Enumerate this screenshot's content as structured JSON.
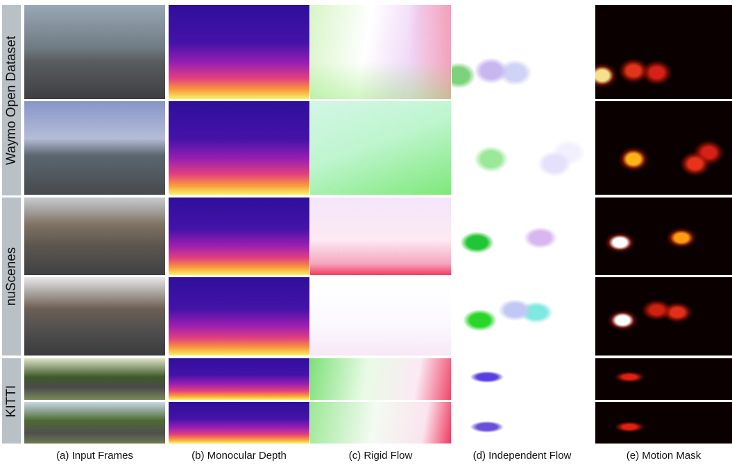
{
  "row_labels": [
    "Waymo Open Dataset",
    "nuScenes",
    "KITTI"
  ],
  "column_captions": [
    "(a) Input Frames",
    "(b) Monocular Depth",
    "(c) Rigid Flow",
    "(d) Independent Flow",
    "(e) Motion Mask"
  ]
}
